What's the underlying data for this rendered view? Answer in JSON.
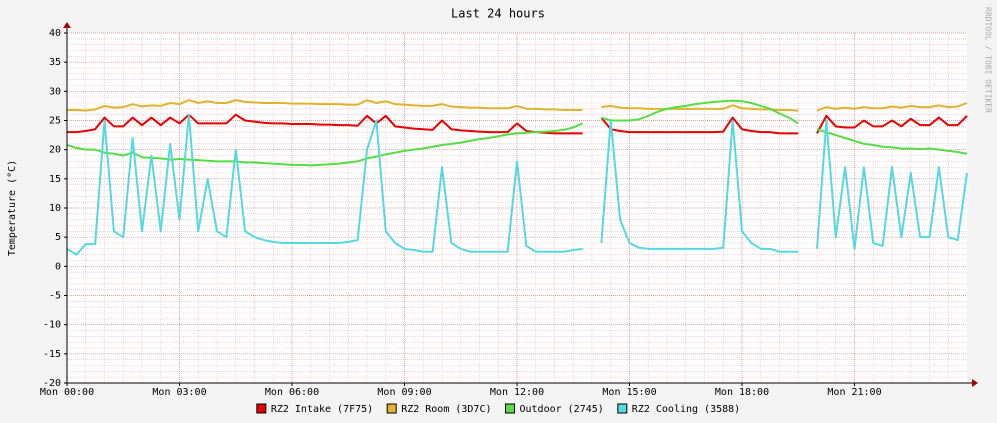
{
  "chart_data": {
    "type": "line",
    "title": "Last 24 hours",
    "y_label": "Temperature (°C)",
    "watermark": "RRDTOOL / TOBI OETIKER",
    "grid": true,
    "legend": "bottom",
    "xlim": [
      0,
      24
    ],
    "xticks": [
      {
        "value": 0,
        "label": "Mon 00:00"
      },
      {
        "value": 3,
        "label": "Mon 03:00"
      },
      {
        "value": 6,
        "label": "Mon 06:00"
      },
      {
        "value": 9,
        "label": "Mon 09:00"
      },
      {
        "value": 12,
        "label": "Mon 12:00"
      },
      {
        "value": 15,
        "label": "Mon 15:00"
      },
      {
        "value": 18,
        "label": "Mon 18:00"
      },
      {
        "value": 21,
        "label": "Mon 21:00"
      }
    ],
    "ylim": [
      -20,
      40
    ],
    "yticks": [
      -20,
      -15,
      -10,
      -5,
      0,
      5,
      10,
      15,
      20,
      25,
      30,
      35,
      40
    ],
    "x": [
      0,
      0.25,
      0.5,
      0.75,
      1,
      1.25,
      1.5,
      1.75,
      2,
      2.25,
      2.5,
      2.75,
      3,
      3.25,
      3.5,
      3.75,
      4,
      4.25,
      4.5,
      4.75,
      5,
      5.25,
      5.5,
      5.75,
      6,
      6.25,
      6.5,
      6.75,
      7,
      7.25,
      7.5,
      7.75,
      8,
      8.25,
      8.5,
      8.75,
      9,
      9.25,
      9.5,
      9.75,
      10,
      10.25,
      10.5,
      10.75,
      11,
      11.25,
      11.5,
      11.75,
      12,
      12.25,
      12.5,
      12.75,
      13,
      13.25,
      13.5,
      13.75,
      14,
      14.25,
      14.5,
      14.75,
      15,
      15.25,
      15.5,
      15.75,
      16,
      16.25,
      16.5,
      16.75,
      17,
      17.25,
      17.5,
      17.75,
      18,
      18.25,
      18.5,
      18.75,
      19,
      19.25,
      19.5,
      19.75,
      20,
      20.25,
      20.5,
      20.75,
      21,
      21.25,
      21.5,
      21.75,
      22,
      22.25,
      22.5,
      22.75,
      23,
      23.25,
      23.5,
      23.75,
      24
    ],
    "series": [
      {
        "name": "RZ2 Intake (7F75)",
        "color": "#e80000",
        "values": [
          23,
          23,
          23.2,
          23.5,
          25.5,
          24,
          24,
          25.5,
          24.2,
          25.5,
          24.2,
          25.5,
          24.5,
          26,
          24.5,
          24.5,
          24.5,
          24.5,
          26,
          25,
          24.8,
          24.6,
          24.5,
          24.5,
          24.4,
          24.4,
          24.4,
          24.3,
          24.3,
          24.2,
          24.2,
          24.1,
          25.8,
          24.5,
          25.8,
          24,
          23.8,
          23.6,
          23.5,
          23.4,
          25,
          23.5,
          23.3,
          23.2,
          23.1,
          23,
          23,
          23,
          24.5,
          23.2,
          23,
          22.9,
          22.8,
          22.8,
          22.8,
          22.8,
          null,
          25.5,
          23.5,
          23.2,
          23,
          23,
          23,
          23,
          23,
          23,
          23,
          23,
          23,
          23,
          23.1,
          25.5,
          23.5,
          23.2,
          23,
          23,
          22.8,
          22.8,
          22.8,
          null,
          22.8,
          25.8,
          24,
          23.8,
          23.8,
          25,
          24,
          24,
          25,
          24,
          25.3,
          24.2,
          24.2,
          25.5,
          24.2,
          24.2,
          25.8
        ]
      },
      {
        "name": "RZ2 Room (3D7C)",
        "color": "#e0b32e",
        "values": [
          26.8,
          26.8,
          26.7,
          26.9,
          27.5,
          27.2,
          27.3,
          27.8,
          27.4,
          27.6,
          27.5,
          28,
          27.8,
          28.5,
          28,
          28.3,
          28,
          28,
          28.5,
          28.2,
          28.1,
          28,
          28,
          28,
          27.9,
          27.9,
          27.9,
          27.8,
          27.8,
          27.8,
          27.7,
          27.7,
          28.5,
          28,
          28.3,
          27.8,
          27.7,
          27.6,
          27.5,
          27.5,
          27.8,
          27.4,
          27.3,
          27.2,
          27.2,
          27.1,
          27.1,
          27.1,
          27.5,
          27,
          27,
          26.9,
          26.9,
          26.8,
          26.8,
          26.8,
          null,
          27.3,
          27.5,
          27.2,
          27.1,
          27.1,
          27,
          27,
          27,
          27,
          27,
          27,
          27,
          27,
          27,
          27.6,
          27.1,
          27,
          26.9,
          26.9,
          26.8,
          26.8,
          26.7,
          null,
          26.7,
          27.3,
          27,
          27.2,
          27,
          27.3,
          27.1,
          27.1,
          27.4,
          27.2,
          27.5,
          27.3,
          27.3,
          27.6,
          27.3,
          27.4,
          28
        ]
      },
      {
        "name": "Outdoor (2745)",
        "color": "#55dd44",
        "values": [
          20.8,
          20.3,
          20,
          20,
          19.5,
          19.3,
          19,
          19.5,
          18.7,
          18.6,
          18.5,
          18.3,
          18.4,
          18.3,
          18.2,
          18.1,
          18,
          18,
          18,
          17.8,
          17.8,
          17.7,
          17.6,
          17.5,
          17.4,
          17.4,
          17.3,
          17.4,
          17.5,
          17.6,
          17.8,
          18,
          18.5,
          18.8,
          19.2,
          19.5,
          19.8,
          20,
          20.2,
          20.5,
          20.8,
          21,
          21.2,
          21.5,
          21.8,
          22,
          22.3,
          22.6,
          22.8,
          22.9,
          23,
          23.1,
          23.2,
          23.4,
          23.8,
          24.5,
          null,
          25.5,
          25,
          25,
          25,
          25.2,
          25.8,
          26.5,
          27,
          27.3,
          27.5,
          27.8,
          28,
          28.2,
          28.3,
          28.4,
          28.3,
          28,
          27.5,
          27,
          26.2,
          25.5,
          24.5,
          null,
          23.5,
          23,
          22.5,
          22,
          21.5,
          21,
          20.8,
          20.5,
          20.4,
          20.2,
          20.2,
          20.1,
          20.2,
          20,
          19.8,
          19.6,
          19.3
        ]
      },
      {
        "name": "RZ2 Cooling (3588)",
        "color": "#55d8e0",
        "values": [
          3,
          2,
          3.8,
          3.8,
          25,
          6,
          5,
          22,
          6,
          19,
          6,
          21,
          8,
          26,
          6,
          15,
          6,
          5,
          20,
          6,
          5,
          4.5,
          4.2,
          4,
          4,
          4,
          4,
          4,
          4,
          4,
          4.2,
          4.5,
          20,
          25,
          6,
          4,
          3,
          2.8,
          2.5,
          2.5,
          17,
          4,
          3,
          2.5,
          2.5,
          2.5,
          2.5,
          2.5,
          18,
          3.5,
          2.5,
          2.5,
          2.5,
          2.5,
          2.8,
          3,
          null,
          4,
          25,
          8,
          4,
          3.2,
          3,
          3,
          3,
          3,
          3,
          3,
          3,
          3,
          3.2,
          25,
          6,
          4,
          3,
          3,
          2.5,
          2.5,
          2.5,
          null,
          3,
          25,
          5,
          17,
          3,
          17,
          4,
          3.5,
          17,
          5,
          16,
          5,
          5,
          17,
          5,
          4.5,
          16
        ]
      }
    ]
  }
}
